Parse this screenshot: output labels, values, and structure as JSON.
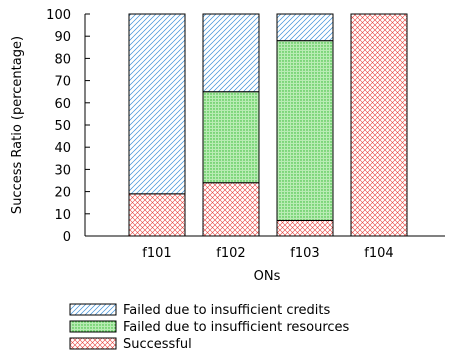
{
  "chart_data": {
    "type": "bar",
    "stacked": true,
    "categories": [
      "f101",
      "f102",
      "f103",
      "f104"
    ],
    "series": [
      {
        "name": "Successful",
        "values": [
          19,
          24,
          7,
          100
        ],
        "pattern": "crosshatch",
        "color": "#e8413c"
      },
      {
        "name": "Failed due to insufficient resources",
        "values": [
          0,
          41,
          81,
          0
        ],
        "pattern": "dots",
        "color": "#2bb82b"
      },
      {
        "name": "Failed due to insufficient credits",
        "values": [
          81,
          35,
          12,
          0
        ],
        "pattern": "diagonal",
        "color": "#3b8fd8"
      }
    ],
    "legend_order": [
      "Failed due to insufficient credits",
      "Failed due to insufficient resources",
      "Successful"
    ],
    "xlabel": "ONs",
    "ylabel": "Success Ratio (percentage)",
    "ylim": [
      0,
      100
    ],
    "yticks": [
      0,
      10,
      20,
      30,
      40,
      50,
      60,
      70,
      80,
      90,
      100
    ],
    "legend_position": "bottom",
    "grid": false
  }
}
